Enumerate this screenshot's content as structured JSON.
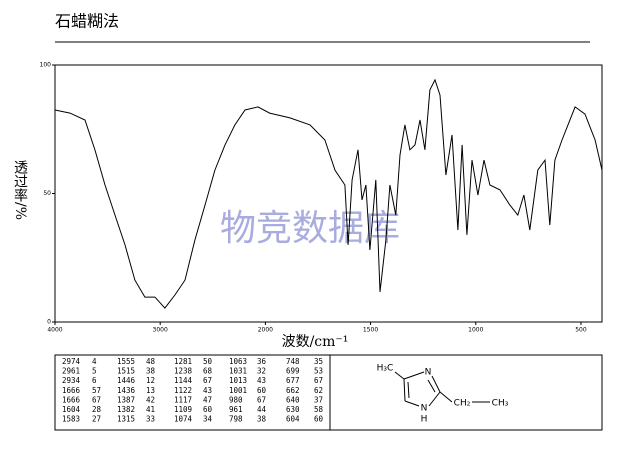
{
  "chart_data": {
    "type": "line",
    "title": "石蜡糊法",
    "x_label": "波数/cm⁻¹",
    "y_label": "透过率/%",
    "watermark": "物竞数据库",
    "x": [
      4000,
      3857,
      3715,
      3620,
      3525,
      3430,
      3335,
      3240,
      3145,
      3050,
      2955,
      2860,
      2764,
      2670,
      2574,
      2480,
      2384,
      2290,
      2194,
      2070,
      1980,
      1883,
      1788,
      1717,
      1669,
      1622,
      1607,
      1588,
      1560,
      1541,
      1522,
      1503,
      1475,
      1455,
      1427,
      1408,
      1380,
      1360,
      1337,
      1313,
      1289,
      1265,
      1242,
      1218,
      1194,
      1170,
      1142,
      1113,
      1085,
      1065,
      1042,
      1018,
      990,
      961,
      933,
      885,
      838,
      800,
      771,
      743,
      705,
      671,
      648,
      624,
      590,
      528,
      481,
      433,
      400
    ],
    "series": [
      {
        "color": "#000000",
        "values": [
          82.5,
          81.3,
          78.6,
          66.9,
          53.3,
          41.6,
          30,
          16.3,
          9.7,
          9.7,
          5.4,
          10.5,
          16.3,
          31.9,
          45.5,
          59.1,
          68.9,
          76.7,
          82.5,
          83.7,
          81.3,
          79.4,
          76.7,
          70.8,
          59.1,
          53.3,
          30,
          55.3,
          67,
          47.5,
          53.3,
          28,
          55.3,
          11.7,
          31.9,
          53.3,
          41.6,
          65,
          76.7,
          67,
          68.9,
          78.6,
          67,
          90.3,
          94.2,
          88.3,
          57.2,
          72.8,
          35.8,
          68.9,
          33.9,
          63,
          49.4,
          63,
          53.3,
          51.4,
          45.5,
          41.6,
          49.4,
          35.8,
          59.1,
          63,
          37.7,
          63,
          70.8,
          83.7,
          80.9,
          70.8,
          59.1
        ]
      }
    ],
    "xlim": [
      4000,
      400
    ],
    "xticks": [
      4000,
      3000,
      2000,
      1500,
      1000,
      500
    ],
    "ylim": [
      0,
      100
    ],
    "yticks": [
      0,
      50,
      100
    ]
  },
  "table": {
    "rows": [
      [
        2974,
        4,
        1555,
        48,
        1281,
        50,
        1063,
        36,
        748,
        35
      ],
      [
        2961,
        5,
        1515,
        38,
        1238,
        68,
        1031,
        32,
        699,
        53
      ],
      [
        2934,
        6,
        1446,
        12,
        1144,
        67,
        1013,
        43,
        677,
        67
      ],
      [
        1666,
        57,
        1436,
        13,
        1122,
        43,
        1001,
        60,
        662,
        62
      ],
      [
        1666,
        67,
        1387,
        42,
        1117,
        47,
        980,
        67,
        640,
        37
      ],
      [
        1604,
        28,
        1382,
        41,
        1109,
        60,
        961,
        44,
        630,
        58
      ],
      [
        1583,
        27,
        1315,
        33,
        1074,
        34,
        798,
        38,
        604,
        60
      ]
    ]
  },
  "structure": {
    "labels": [
      "H₃C",
      "N",
      "N",
      "H",
      "CH₂",
      "CH₃"
    ]
  }
}
